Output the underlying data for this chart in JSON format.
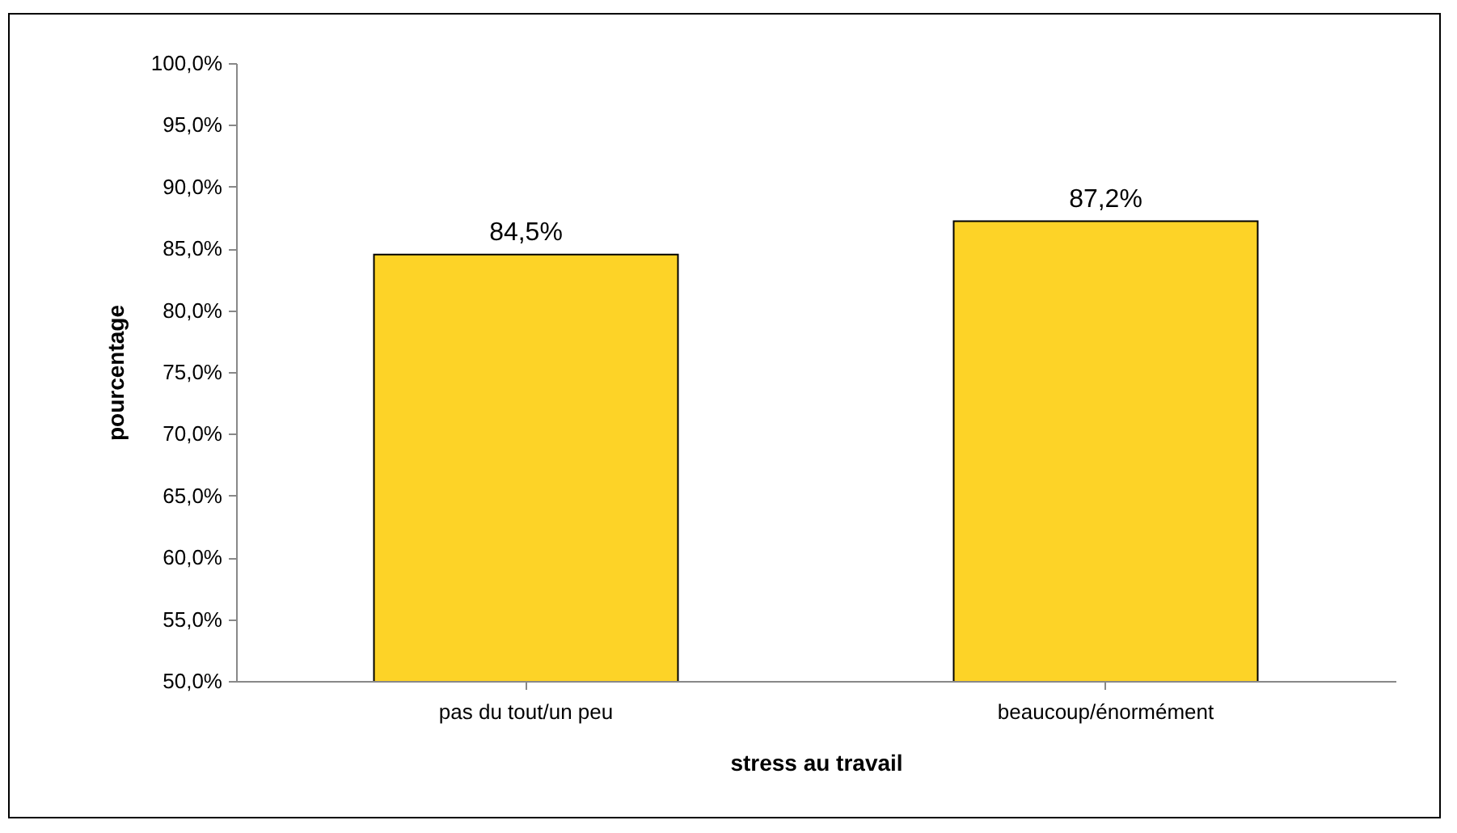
{
  "chart_data": {
    "type": "bar",
    "xlabel": "stress au travail",
    "ylabel": "pourcentage",
    "categories": [
      "pas du tout/un peu",
      "beaucoup/énormément"
    ],
    "values": [
      84.5,
      87.2
    ],
    "value_labels": [
      "84,5%",
      "87,2%"
    ],
    "color": "#fdd327",
    "ylim": [
      50,
      100
    ],
    "yticks": [
      {
        "value": 50,
        "label": "50,0%"
      },
      {
        "value": 55,
        "label": "55,0%"
      },
      {
        "value": 60,
        "label": "60,0%"
      },
      {
        "value": 65,
        "label": "65,0%"
      },
      {
        "value": 70,
        "label": "70,0%"
      },
      {
        "value": 75,
        "label": "75,0%"
      },
      {
        "value": 80,
        "label": "80,0%"
      },
      {
        "value": 85,
        "label": "85,0%"
      },
      {
        "value": 90,
        "label": "90,0%"
      },
      {
        "value": 95,
        "label": "95,0%"
      },
      {
        "value": 100,
        "label": "100,0%"
      }
    ],
    "grid": false
  }
}
